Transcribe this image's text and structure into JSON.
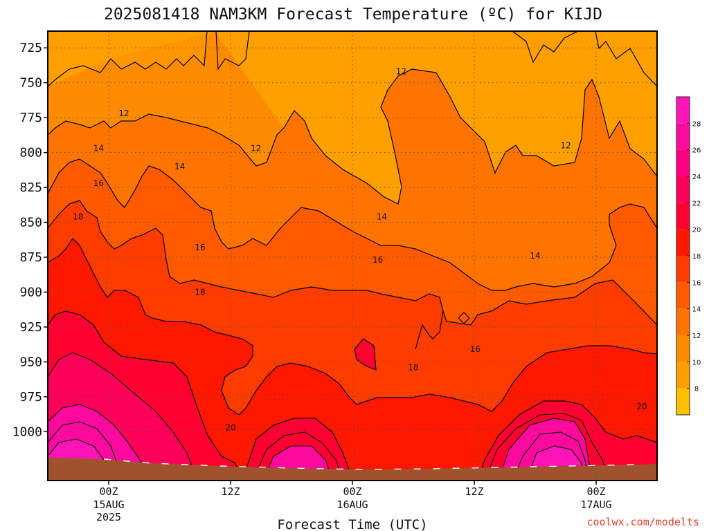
{
  "chart_data": {
    "type": "heatmap",
    "title": "2025081418 NAM3KM Forecast Temperature (ºC) for KIJD",
    "xlabel": "Forecast Time (UTC)",
    "ylabel": "",
    "credit": "coolwx.com/modelts",
    "y_ticks": [
      "725",
      "750",
      "775",
      "800",
      "825",
      "850",
      "875",
      "900",
      "925",
      "950",
      "975",
      "1000"
    ],
    "x_ticks": [
      {
        "label": "00Z",
        "sub": "15AUG",
        "sub2": "2025",
        "hour": 0
      },
      {
        "label": "12Z",
        "sub": "",
        "sub2": "",
        "hour": 12
      },
      {
        "label": "00Z",
        "sub": "16AUG",
        "sub2": "",
        "hour": 24
      },
      {
        "label": "12Z",
        "sub": "",
        "sub2": "",
        "hour": 36
      },
      {
        "label": "00Z",
        "sub": "17AUG",
        "sub2": "",
        "hour": 48
      }
    ],
    "x_range_hours": [
      -6,
      54
    ],
    "y_range_hpa": [
      713,
      1035
    ],
    "colorbar": {
      "levels": [
        6,
        8,
        10,
        12,
        14,
        16,
        18,
        20,
        22,
        24,
        26,
        28,
        30
      ],
      "tick_labels": [
        "8",
        "10",
        "12",
        "14",
        "16",
        "18",
        "20",
        "22",
        "24",
        "26",
        "28"
      ],
      "colors": [
        "#ffc000",
        "#ffa000",
        "#ff8c00",
        "#ff7400",
        "#ff5a00",
        "#ff3c00",
        "#ff1800",
        "#ff0030",
        "#ff0058",
        "#ff0080",
        "#ff0a9e",
        "#ff14b8"
      ]
    },
    "grid": true,
    "contours": [
      {
        "level": 12,
        "labels": [
          {
            "hour": 1.5,
            "hpa": 772
          },
          {
            "hour": 14.5,
            "hpa": 797
          },
          {
            "hour": 28.8,
            "hpa": 742
          },
          {
            "hour": 45,
            "hpa": 795
          }
        ]
      },
      {
        "level": 14,
        "labels": [
          {
            "hour": -1,
            "hpa": 797
          },
          {
            "hour": 7,
            "hpa": 810
          },
          {
            "hour": 26.9,
            "hpa": 846
          },
          {
            "hour": 42,
            "hpa": 874
          }
        ]
      },
      {
        "level": 16,
        "labels": [
          {
            "hour": -1,
            "hpa": 822
          },
          {
            "hour": 9,
            "hpa": 868
          },
          {
            "hour": 26.5,
            "hpa": 877
          },
          {
            "hour": 36.1,
            "hpa": 941
          }
        ]
      },
      {
        "level": 18,
        "labels": [
          {
            "hour": -3,
            "hpa": 846
          },
          {
            "hour": 9,
            "hpa": 900
          },
          {
            "hour": 30,
            "hpa": 954
          }
        ]
      },
      {
        "level": 20,
        "labels": [
          {
            "hour": 12,
            "hpa": 997
          },
          {
            "hour": 52.5,
            "hpa": 982
          }
        ]
      }
    ]
  }
}
